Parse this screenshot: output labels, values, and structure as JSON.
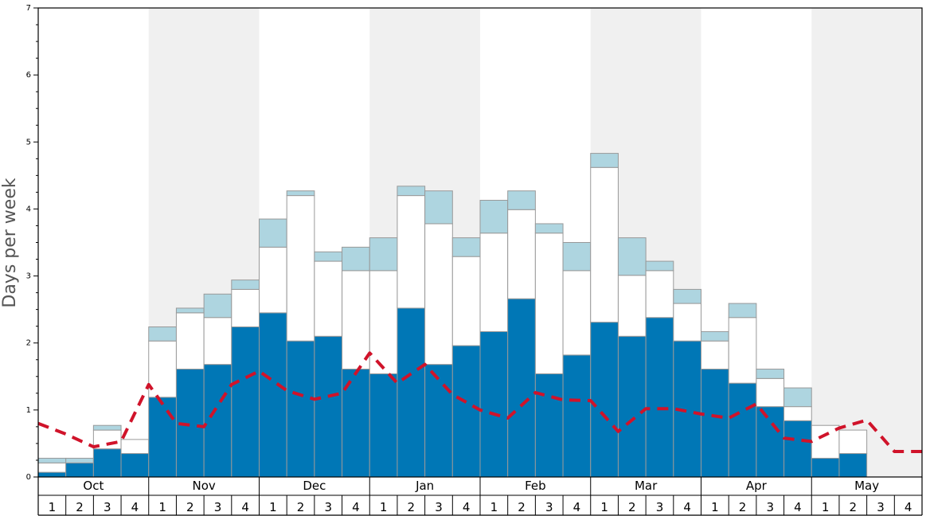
{
  "chart_data": {
    "type": "bar",
    "stacked": true,
    "title": "",
    "xlabel": "",
    "ylabel": "Days per week",
    "ylim": [
      0,
      7
    ],
    "yticks": [
      0,
      1,
      2,
      3,
      4,
      5,
      6,
      7
    ],
    "months": [
      "Oct",
      "Nov",
      "Dec",
      "Jan",
      "Feb",
      "Mar",
      "Apr",
      "May"
    ],
    "weeks": [
      "1",
      "2",
      "3",
      "4"
    ],
    "shaded_months": [
      "Nov",
      "Jan",
      "Mar",
      "May"
    ],
    "colors": {
      "bottom": "#0077b6",
      "middle": "#ffffff",
      "top": "#aed5e0",
      "line": "#d0132a",
      "shade": "#f0f0f0",
      "bar_stroke": "#999999"
    },
    "series": [
      {
        "name": "bottom",
        "values": [
          0.07,
          0.21,
          0.42,
          0.35,
          1.19,
          1.61,
          1.68,
          2.24,
          2.45,
          2.03,
          2.1,
          1.61,
          1.54,
          2.52,
          1.68,
          1.96,
          2.17,
          2.66,
          1.54,
          1.82,
          2.31,
          2.1,
          2.38,
          2.03,
          1.61,
          1.4,
          1.05,
          0.84,
          0.28,
          0.35,
          0,
          0
        ]
      },
      {
        "name": "middle",
        "values": [
          0.14,
          0,
          0.28,
          0.21,
          0.84,
          0.84,
          0.7,
          0.56,
          0.98,
          2.17,
          1.12,
          1.47,
          1.54,
          1.68,
          2.1,
          1.33,
          1.47,
          1.33,
          2.1,
          1.26,
          2.31,
          0.91,
          0.7,
          0.56,
          0.42,
          0.98,
          0.42,
          0.21,
          0.49,
          0.35,
          0,
          0
        ]
      },
      {
        "name": "top",
        "values": [
          0.07,
          0.07,
          0.07,
          0,
          0.21,
          0.07,
          0.35,
          0.14,
          0.42,
          0.07,
          0.14,
          0.35,
          0.49,
          0.14,
          0.49,
          0.28,
          0.49,
          0.28,
          0.14,
          0.42,
          0.21,
          0.56,
          0.14,
          0.21,
          0.14,
          0.21,
          0.14,
          0.28,
          0,
          0,
          0,
          0
        ]
      }
    ],
    "line": {
      "name": "dashed",
      "values": [
        0.8,
        0.64,
        0.45,
        0.53,
        1.38,
        0.8,
        0.75,
        1.38,
        1.58,
        1.29,
        1.16,
        1.25,
        1.85,
        1.4,
        1.68,
        1.23,
        1.0,
        0.88,
        1.26,
        1.15,
        1.14,
        0.68,
        1.02,
        1.02,
        0.94,
        0.88,
        1.09,
        0.58,
        0.53,
        0.73,
        0.85,
        0.38,
        0.38
      ]
    }
  }
}
